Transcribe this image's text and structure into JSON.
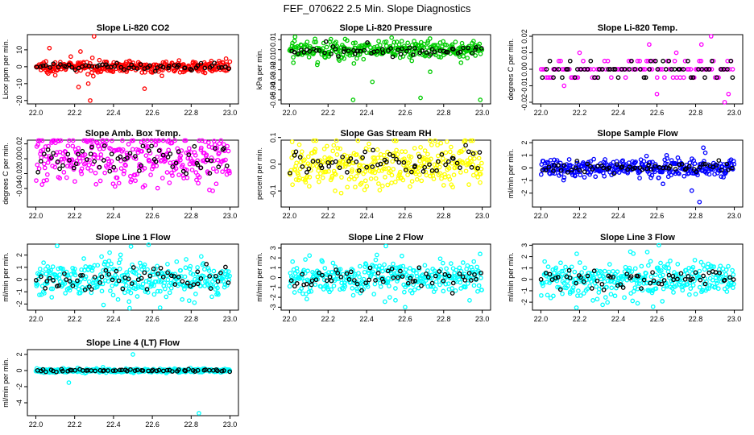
{
  "figure_title": "FEF_070622  2.5 Min. Slope Diagnostics",
  "chart_data": [
    {
      "type": "scatter",
      "title": "Slope Li-820 CO2",
      "ylabel": "Licor ppm per min.",
      "xlim": [
        22.0,
        23.0
      ],
      "ylim": [
        -22,
        19
      ],
      "x_ticks": [
        "22.0",
        "22.2",
        "22.4",
        "22.6",
        "22.8",
        "23.0"
      ],
      "y_ticks": [
        {
          "v": -20,
          "label": "-20"
        },
        {
          "v": -10,
          "label": "-10"
        },
        {
          "v": 0,
          "label": "0"
        },
        {
          "v": 10,
          "label": "10"
        }
      ],
      "color": "#ff0000",
      "spread": 1.6,
      "outliers": [
        {
          "x": 22.07,
          "y": 11
        },
        {
          "x": 22.23,
          "y": 9
        },
        {
          "x": 22.3,
          "y": 18
        },
        {
          "x": 22.1,
          "y": -5
        },
        {
          "x": 22.27,
          "y": -10
        },
        {
          "x": 22.22,
          "y": -12
        },
        {
          "x": 22.28,
          "y": -20
        },
        {
          "x": 22.56,
          "y": -13
        },
        {
          "x": 22.18,
          "y": 6
        }
      ]
    },
    {
      "type": "scatter",
      "title": "Slope Li-820 Pressure",
      "ylabel": "kPa per min.",
      "xlim": [
        22.0,
        23.0
      ],
      "ylim": [
        -0.054,
        0.015
      ],
      "x_ticks": [
        "22.0",
        "22.2",
        "22.4",
        "22.6",
        "22.8",
        "23.0"
      ],
      "y_ticks": [
        {
          "v": -0.05,
          "label": "-0.05"
        },
        {
          "v": -0.04,
          "label": "-0.04"
        },
        {
          "v": -0.03,
          "label": "-0.03"
        },
        {
          "v": -0.02,
          "label": "-0.02"
        },
        {
          "v": -0.01,
          "label": "-0.01"
        },
        {
          "v": 0,
          "label": "0"
        },
        {
          "v": 0.01,
          "label": "0.01"
        }
      ],
      "color": "#00cc00",
      "spread": 0.005,
      "outliers": [
        {
          "x": 22.33,
          "y": -0.05
        },
        {
          "x": 22.43,
          "y": -0.032
        },
        {
          "x": 22.68,
          "y": -0.048
        },
        {
          "x": 22.73,
          "y": -0.022
        },
        {
          "x": 22.99,
          "y": -0.05
        },
        {
          "x": 22.53,
          "y": 0.012
        },
        {
          "x": 22.02,
          "y": -0.013
        },
        {
          "x": 22.89,
          "y": -0.013
        }
      ]
    },
    {
      "type": "scatter",
      "title": "Slope Li-820 Temp.",
      "ylabel": "degrees C per min.",
      "xlim": [
        22.0,
        23.0
      ],
      "ylim": [
        -0.021,
        0.021
      ],
      "x_ticks": [
        "22.0",
        "22.2",
        "22.4",
        "22.6",
        "22.8",
        "23.0"
      ],
      "y_ticks": [
        {
          "v": -0.02,
          "label": "-0.02"
        },
        {
          "v": -0.01,
          "label": "-0.01"
        },
        {
          "v": 0,
          "label": "0.00"
        },
        {
          "v": 0.01,
          "label": "0.01"
        },
        {
          "v": 0.02,
          "label": "0.02"
        }
      ],
      "color": "#ff00ff",
      "levels": [
        -0.005,
        0,
        0.005
      ],
      "outliers": [
        {
          "x": 22.56,
          "y": 0.015
        },
        {
          "x": 22.83,
          "y": 0.015
        },
        {
          "x": 22.88,
          "y": 0.02
        },
        {
          "x": 22.6,
          "y": -0.015
        },
        {
          "x": 22.97,
          "y": -0.015
        },
        {
          "x": 22.2,
          "y": 0.01
        },
        {
          "x": 22.7,
          "y": 0.01
        },
        {
          "x": 22.95,
          "y": -0.02
        },
        {
          "x": 22.12,
          "y": -0.01
        }
      ]
    },
    {
      "type": "scatter",
      "title": "Slope Amb. Box Temp.",
      "ylabel": "degrees C per min.",
      "xlim": [
        22.0,
        23.0
      ],
      "ylim": [
        -0.065,
        0.025
      ],
      "x_ticks": [
        "22.0",
        "22.2",
        "22.4",
        "22.6",
        "22.8",
        "23.0"
      ],
      "y_ticks": [
        {
          "v": -0.04,
          "label": "-0.04"
        },
        {
          "v": -0.02,
          "label": "-0.02"
        },
        {
          "v": 0,
          "label": "0.00"
        },
        {
          "v": 0.02,
          "label": "0.02"
        }
      ],
      "color": "#ff00ff",
      "spread": 0.018,
      "outliers": []
    },
    {
      "type": "scatter",
      "title": "Slope Gas Stream RH",
      "ylabel": "percent per min.",
      "xlim": [
        22.0,
        23.0
      ],
      "ylim": [
        -0.16,
        0.09
      ],
      "x_ticks": [
        "22.0",
        "22.2",
        "22.4",
        "22.6",
        "22.8",
        "23.0"
      ],
      "y_ticks": [
        {
          "v": -0.1,
          "label": "-0.1"
        },
        {
          "v": 0,
          "label": "0.0"
        },
        {
          "v": 0.1,
          "label": "0.1"
        }
      ],
      "color": "#ffff00",
      "spread": 0.045,
      "outliers": []
    },
    {
      "type": "scatter",
      "title": "Slope Sample Flow",
      "ylabel": "ml/min per min.",
      "xlim": [
        22.0,
        23.0
      ],
      "ylim": [
        -3.1,
        2.2
      ],
      "x_ticks": [
        "22.0",
        "22.2",
        "22.4",
        "22.6",
        "22.8",
        "23.0"
      ],
      "y_ticks": [
        {
          "v": -2,
          "label": "-2"
        },
        {
          "v": -1,
          "label": "-1"
        },
        {
          "v": 0,
          "label": "0"
        },
        {
          "v": 1,
          "label": "1"
        },
        {
          "v": 2,
          "label": "2"
        }
      ],
      "color": "#0000ff",
      "spread": 0.35,
      "outliers": [
        {
          "x": 22.78,
          "y": -1.8
        },
        {
          "x": 22.82,
          "y": -2.7
        },
        {
          "x": 22.84,
          "y": 1.6
        },
        {
          "x": 22.85,
          "y": 1.2
        },
        {
          "x": 22.65,
          "y": 1.0
        }
      ]
    },
    {
      "type": "scatter",
      "title": "Slope Line 1 Flow",
      "ylabel": "ml/min per min.",
      "xlim": [
        22.0,
        23.0
      ],
      "ylim": [
        -2.5,
        2.9
      ],
      "x_ticks": [
        "22.0",
        "22.2",
        "22.4",
        "22.6",
        "22.8",
        "23.0"
      ],
      "y_ticks": [
        {
          "v": -2,
          "label": "-2"
        },
        {
          "v": -1,
          "label": "-1"
        },
        {
          "v": 0,
          "label": "0"
        },
        {
          "v": 1,
          "label": "1"
        },
        {
          "v": 2,
          "label": "2"
        }
      ],
      "color": "#00ffff",
      "spread": 0.75,
      "outliers": [
        {
          "x": 22.38,
          "y": 2.2
        },
        {
          "x": 22.49,
          "y": 2.7
        },
        {
          "x": 22.64,
          "y": -2.3
        },
        {
          "x": 22.48,
          "y": -1.8
        }
      ]
    },
    {
      "type": "scatter",
      "title": "Slope Line 2 Flow",
      "ylabel": "ml/min per min.",
      "xlim": [
        22.0,
        23.0
      ],
      "ylim": [
        -3.3,
        3.4
      ],
      "x_ticks": [
        "22.0",
        "22.2",
        "22.4",
        "22.6",
        "22.8",
        "23.0"
      ],
      "y_ticks": [
        {
          "v": -3,
          "label": "-3"
        },
        {
          "v": -2,
          "label": "-2"
        },
        {
          "v": -1,
          "label": "-1"
        },
        {
          "v": 0,
          "label": "0"
        },
        {
          "v": 1,
          "label": "1"
        },
        {
          "v": 2,
          "label": "2"
        },
        {
          "v": 3,
          "label": "3"
        }
      ],
      "color": "#00ffff",
      "spread": 0.8,
      "outliers": [
        {
          "x": 22.5,
          "y": 3.2
        },
        {
          "x": 22.6,
          "y": -3.0
        },
        {
          "x": 22.55,
          "y": -2.3
        },
        {
          "x": 22.52,
          "y": -2.0
        }
      ]
    },
    {
      "type": "scatter",
      "title": "Slope Line 3 Flow",
      "ylabel": "ml/min per min.",
      "xlim": [
        22.0,
        23.0
      ],
      "ylim": [
        -2.7,
        3.1
      ],
      "x_ticks": [
        "22.0",
        "22.2",
        "22.4",
        "22.6",
        "22.8",
        "23.0"
      ],
      "y_ticks": [
        {
          "v": -2,
          "label": "-2"
        },
        {
          "v": -1,
          "label": "-1"
        },
        {
          "v": 0,
          "label": "0"
        },
        {
          "v": 1,
          "label": "1"
        },
        {
          "v": 2,
          "label": "2"
        },
        {
          "v": 3,
          "label": "3"
        }
      ],
      "color": "#00ffff",
      "spread": 0.8,
      "outliers": [
        {
          "x": 22.55,
          "y": 2.4
        },
        {
          "x": 22.61,
          "y": 3.0
        },
        {
          "x": 22.5,
          "y": -2.1
        },
        {
          "x": 22.58,
          "y": -2.4
        }
      ]
    },
    {
      "type": "scatter",
      "title": "Slope Line 4 (LT) Flow",
      "ylabel": "ml/min per min.",
      "xlim": [
        22.0,
        23.0
      ],
      "ylim": [
        -5.6,
        2.6
      ],
      "x_ticks": [
        "22.0",
        "22.2",
        "22.4",
        "22.6",
        "22.8",
        "23.0"
      ],
      "y_ticks": [
        {
          "v": -4,
          "label": "-4"
        },
        {
          "v": -2,
          "label": "-2"
        },
        {
          "v": 0,
          "label": "0"
        },
        {
          "v": 2,
          "label": "2"
        }
      ],
      "color": "#00ffff",
      "spread": 0.12,
      "outliers": [
        {
          "x": 22.5,
          "y": 2.0
        },
        {
          "x": 22.17,
          "y": -1.5
        },
        {
          "x": 22.84,
          "y": -5.3
        }
      ]
    }
  ]
}
